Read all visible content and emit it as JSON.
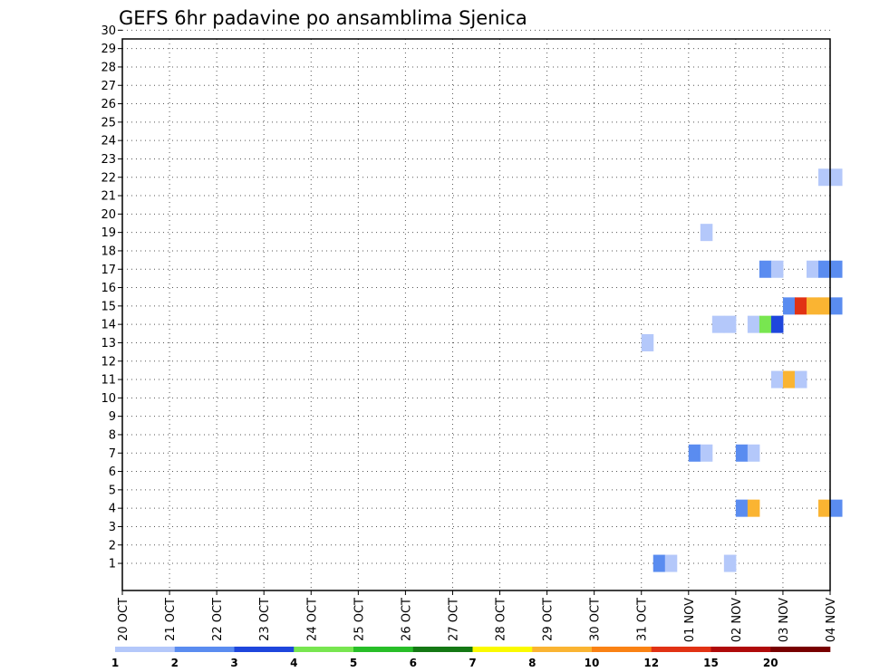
{
  "chart_data": {
    "type": "heatmap",
    "title": "GEFS 6hr padavine po ansamblima Sjenica",
    "xlabel": "",
    "ylabel": "",
    "x_start": "2020-10-20T00:00",
    "x_end": "2020-11-04T00:00",
    "x_step_hours": 6,
    "x_ticks": [
      "20 OCT",
      "21 OCT",
      "22 OCT",
      "23 OCT",
      "24 OCT",
      "25 OCT",
      "26 OCT",
      "27 OCT",
      "28 OCT",
      "29 OCT",
      "30 OCT",
      "31 OCT",
      "01 NOV",
      "02 NOV",
      "03 NOV",
      "04 NOV"
    ],
    "y_ticks": [
      1,
      2,
      3,
      4,
      5,
      6,
      7,
      8,
      9,
      10,
      11,
      12,
      13,
      14,
      15,
      16,
      17,
      18,
      19,
      20,
      21,
      22,
      23,
      24,
      25,
      26,
      27,
      28,
      29,
      30
    ],
    "ylim": [
      0,
      30
    ],
    "grid": true,
    "legend": {
      "placement": "bottom",
      "labels": [
        "1",
        "2",
        "3",
        "4",
        "5",
        "6",
        "7",
        "8",
        "10",
        "12",
        "15",
        "20"
      ],
      "colors": [
        "#b4c8fa",
        "#5a8cf0",
        "#1e46dc",
        "#78e650",
        "#28be28",
        "#147814",
        "#fafa00",
        "#fab432",
        "#fa8214",
        "#e13214",
        "#af0a0a",
        "#780000"
      ]
    },
    "cells": [
      {
        "member": 1,
        "time": "2020-10-31T06:00",
        "value": 2
      },
      {
        "member": 1,
        "time": "2020-10-31T12:00",
        "value": 1
      },
      {
        "member": 1,
        "time": "2020-11-01T18:00",
        "value": 1
      },
      {
        "member": 4,
        "time": "2020-11-02T00:00",
        "value": 2
      },
      {
        "member": 4,
        "time": "2020-11-02T06:00",
        "value": 8
      },
      {
        "member": 4,
        "time": "2020-11-03T18:00",
        "value": 8
      },
      {
        "member": 4,
        "time": "2020-11-04T00:00",
        "value": 2
      },
      {
        "member": 7,
        "time": "2020-11-01T00:00",
        "value": 2
      },
      {
        "member": 7,
        "time": "2020-11-01T06:00",
        "value": 1
      },
      {
        "member": 7,
        "time": "2020-11-02T00:00",
        "value": 2
      },
      {
        "member": 7,
        "time": "2020-11-02T06:00",
        "value": 1
      },
      {
        "member": 11,
        "time": "2020-11-02T18:00",
        "value": 1
      },
      {
        "member": 11,
        "time": "2020-11-03T00:00",
        "value": 8
      },
      {
        "member": 11,
        "time": "2020-11-03T06:00",
        "value": 1
      },
      {
        "member": 13,
        "time": "2020-10-31T00:00",
        "value": 1
      },
      {
        "member": 14,
        "time": "2020-11-01T12:00",
        "value": 1
      },
      {
        "member": 14,
        "time": "2020-11-01T18:00",
        "value": 1
      },
      {
        "member": 14,
        "time": "2020-11-02T06:00",
        "value": 1
      },
      {
        "member": 14,
        "time": "2020-11-02T12:00",
        "value": 4
      },
      {
        "member": 14,
        "time": "2020-11-02T18:00",
        "value": 3
      },
      {
        "member": 15,
        "time": "2020-11-03T00:00",
        "value": 2
      },
      {
        "member": 15,
        "time": "2020-11-03T06:00",
        "value": 12
      },
      {
        "member": 15,
        "time": "2020-11-03T12:00",
        "value": 8
      },
      {
        "member": 15,
        "time": "2020-11-03T18:00",
        "value": 8
      },
      {
        "member": 15,
        "time": "2020-11-04T00:00",
        "value": 2
      },
      {
        "member": 17,
        "time": "2020-11-02T12:00",
        "value": 2
      },
      {
        "member": 17,
        "time": "2020-11-02T18:00",
        "value": 1
      },
      {
        "member": 17,
        "time": "2020-11-03T12:00",
        "value": 1
      },
      {
        "member": 17,
        "time": "2020-11-03T18:00",
        "value": 2
      },
      {
        "member": 17,
        "time": "2020-11-04T00:00",
        "value": 2
      },
      {
        "member": 19,
        "time": "2020-11-01T06:00",
        "value": 1
      },
      {
        "member": 22,
        "time": "2020-11-03T18:00",
        "value": 1
      },
      {
        "member": 22,
        "time": "2020-11-04T00:00",
        "value": 1
      }
    ]
  }
}
